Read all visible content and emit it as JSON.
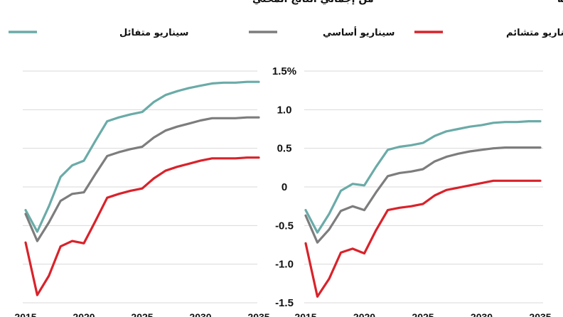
{
  "chart_data": {
    "type": "line",
    "legend": [
      {
        "name": "سيناريو متفائل",
        "color": "#6aaba8"
      },
      {
        "name": "سيناريو أساسي",
        "color": "#7d7d7d"
      },
      {
        "name": "سيناريو متشائم",
        "color": "#d9222a"
      }
    ],
    "yticks": [
      "1.5%",
      "1.0",
      "0.5",
      "0",
      "-0.5",
      "-1.0",
      "-1.5"
    ],
    "ytick_values": [
      1.5,
      1.0,
      0.5,
      0,
      -0.5,
      -1.0,
      -1.5
    ],
    "ylim": [
      -1.5,
      1.5
    ],
    "grid": true,
    "panels": [
      {
        "title": "من إجمالي الناتج المحلي",
        "xlim": [
          2015,
          2035
        ],
        "xtick_values": [
          2015,
          2020,
          2025,
          2030,
          2035
        ],
        "xtick_labels": [
          "2015",
          "2020",
          "2025",
          "2030",
          "2035"
        ],
        "x": [
          2015,
          2016,
          2017,
          2018,
          2019,
          2020,
          2021,
          2022,
          2023,
          2024,
          2025,
          2026,
          2027,
          2028,
          2029,
          2030,
          2031,
          2032,
          2033,
          2034,
          2035
        ],
        "series": [
          {
            "name": "سيناريو متفائل",
            "values": [
              -0.3,
              -0.58,
              -0.25,
              0.13,
              0.28,
              0.34,
              0.6,
              0.85,
              0.9,
              0.94,
              0.97,
              1.1,
              1.19,
              1.24,
              1.28,
              1.31,
              1.34,
              1.35,
              1.35,
              1.36,
              1.36
            ]
          },
          {
            "name": "سيناريو أساسي",
            "values": [
              -0.35,
              -0.7,
              -0.46,
              -0.18,
              -0.09,
              -0.07,
              0.17,
              0.4,
              0.45,
              0.49,
              0.52,
              0.64,
              0.73,
              0.78,
              0.82,
              0.86,
              0.89,
              0.89,
              0.89,
              0.9,
              0.9
            ]
          },
          {
            "name": "سيناريو متشائم",
            "values": [
              -0.72,
              -1.4,
              -1.15,
              -0.77,
              -0.7,
              -0.73,
              -0.44,
              -0.14,
              -0.09,
              -0.05,
              -0.02,
              0.11,
              0.21,
              0.26,
              0.3,
              0.34,
              0.37,
              0.37,
              0.37,
              0.38,
              0.38
            ]
          }
        ]
      },
      {
        "title": "لمن يعمل في الصناعة",
        "xlim": [
          2015,
          2035
        ],
        "xtick_values": [
          2015,
          2020,
          2025,
          2030,
          2035
        ],
        "xtick_labels": [
          "2015",
          "2020",
          "2025",
          "2030",
          "2035"
        ],
        "x": [
          2015,
          2016,
          2017,
          2018,
          2019,
          2020,
          2021,
          2022,
          2023,
          2024,
          2025,
          2026,
          2027,
          2028,
          2029,
          2030,
          2031,
          2032,
          2033,
          2034,
          2035
        ],
        "series": [
          {
            "name": "سيناريو متفائل",
            "values": [
              -0.3,
              -0.59,
              -0.35,
              -0.05,
              0.04,
              0.02,
              0.26,
              0.48,
              0.52,
              0.54,
              0.57,
              0.66,
              0.72,
              0.75,
              0.78,
              0.8,
              0.83,
              0.84,
              0.84,
              0.85,
              0.85
            ]
          },
          {
            "name": "سيناريو أساسي",
            "values": [
              -0.37,
              -0.72,
              -0.55,
              -0.31,
              -0.25,
              -0.3,
              -0.07,
              0.14,
              0.18,
              0.2,
              0.23,
              0.33,
              0.39,
              0.43,
              0.46,
              0.48,
              0.5,
              0.51,
              0.51,
              0.51,
              0.51
            ]
          },
          {
            "name": "سيناريو متشائم",
            "values": [
              -0.73,
              -1.42,
              -1.19,
              -0.85,
              -0.8,
              -0.86,
              -0.56,
              -0.3,
              -0.27,
              -0.25,
              -0.22,
              -0.11,
              -0.04,
              -0.01,
              0.02,
              0.05,
              0.08,
              0.08,
              0.08,
              0.08,
              0.08
            ]
          }
        ]
      }
    ]
  }
}
